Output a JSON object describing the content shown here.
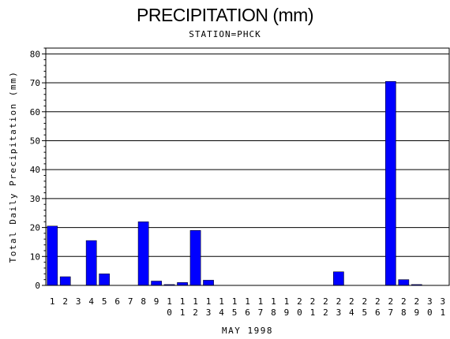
{
  "chart_data": {
    "type": "bar",
    "title": "PRECIPITATION (mm)",
    "subtitle": "STATION=PHCK",
    "xlabel": "MAY 1998",
    "ylabel": "Total Daily Precipitation (mm)",
    "ylim": [
      0,
      82
    ],
    "yticks": [
      0,
      10,
      20,
      30,
      40,
      50,
      60,
      70,
      80
    ],
    "categories": [
      "1",
      "2",
      "3",
      "4",
      "5",
      "6",
      "7",
      "8",
      "9",
      "10",
      "11",
      "12",
      "13",
      "14",
      "15",
      "16",
      "17",
      "18",
      "19",
      "20",
      "21",
      "22",
      "23",
      "24",
      "25",
      "26",
      "27",
      "28",
      "29",
      "30",
      "31"
    ],
    "values": [
      20.5,
      3.0,
      0,
      15.5,
      4.0,
      0,
      0,
      22.0,
      1.5,
      0.3,
      1.0,
      19.0,
      1.8,
      0,
      0,
      0,
      0,
      0,
      0,
      0,
      0,
      0,
      4.7,
      0,
      0,
      0,
      70.5,
      2.0,
      0.3,
      0,
      0
    ],
    "grid": true,
    "bar_color": "#0000ff"
  }
}
